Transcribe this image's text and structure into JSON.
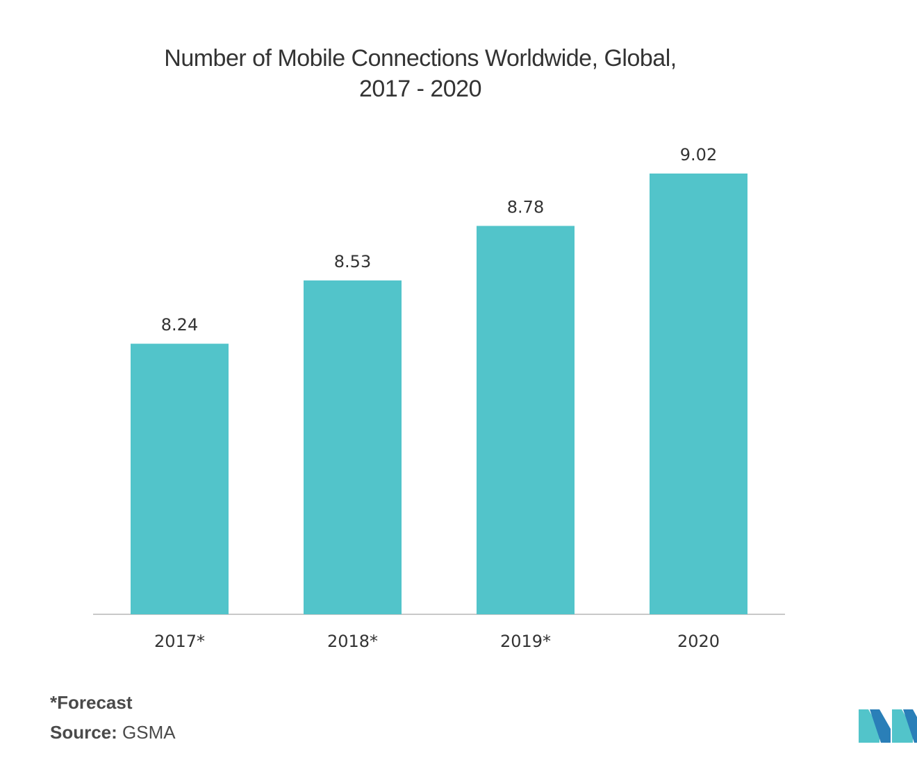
{
  "chart_data": {
    "type": "bar",
    "title_lines": [
      "Number of Mobile Connections Worldwide, Global,",
      "2017 - 2020"
    ],
    "categories": [
      "2017*",
      "2018*",
      "2019*",
      "2020"
    ],
    "values": [
      8.24,
      8.53,
      8.78,
      9.02
    ],
    "value_labels": [
      "8.24",
      "8.53",
      "8.78",
      "9.02"
    ],
    "xlabel": "",
    "ylabel": "",
    "ylim": [
      7.0,
      9.2
    ],
    "grid": false,
    "bar_color": "#52c4ca"
  },
  "footer": {
    "footnote": "*Forecast",
    "source_label": "Source:",
    "source_value": " GSMA"
  },
  "logo": {
    "icon": "mordor-intelligence-logo-icon",
    "colors": [
      "#52c4ca",
      "#2a7fb8"
    ]
  }
}
